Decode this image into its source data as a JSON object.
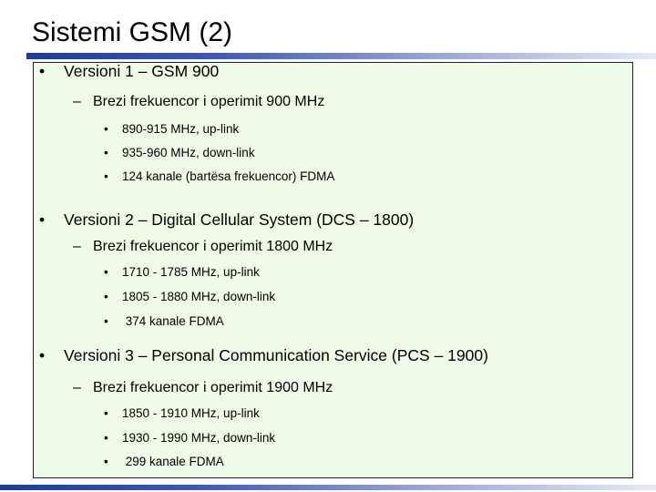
{
  "slide": {
    "title": "Sistemi GSM (2)",
    "sections": [
      {
        "heading": "Versioni 1 – GSM 900",
        "sub": "Brezi frekuencor i operimit 900 MHz",
        "items": [
          "890-915 MHz, up-link",
          "935-960 MHz, down-link",
          "124 kanale (bartësa  frekuencor) FDMA"
        ]
      },
      {
        "heading": "Versioni 2 – Digital Cellular System (DCS – 1800)",
        "sub": "Brezi frekuencor i operimit 1800 MHz",
        "items": [
          "1710 - 1785 MHz, up-link",
          "1805 - 1880 MHz, down-link",
          " 374 kanale FDMA"
        ]
      },
      {
        "heading": "Versioni 3 – Personal Communication Service (PCS – 1900)",
        "sub": "Brezi frekuencor i operimit 1900 MHz",
        "items": [
          "1850 - 1910 MHz, up-link",
          "1930 - 1990 MHz, down-link",
          " 299 kanale FDMA"
        ]
      }
    ]
  },
  "markers": {
    "level1": "•",
    "level2": "–",
    "level3": "•"
  },
  "colors": {
    "accent": "#1f3a99",
    "box_background": "#effbe9"
  }
}
